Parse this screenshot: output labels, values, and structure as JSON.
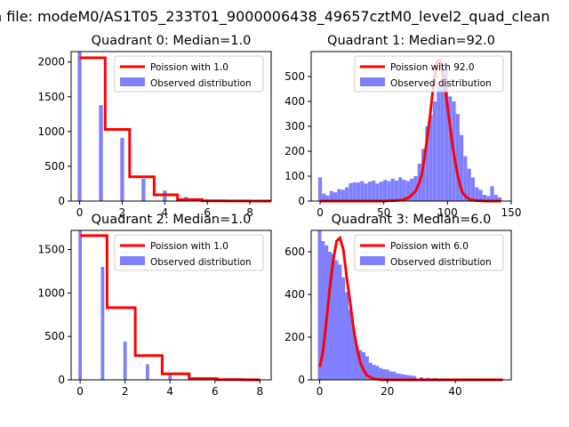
{
  "suptitle": "n file: modeM0/AS1T05_233T01_9000006438_49657cztM0_level2_quad_clean",
  "colors": {
    "model": "#ff0000",
    "observed": "#7f7fff",
    "axis": "#000000"
  },
  "chart_data": [
    {
      "type": "bar",
      "title": "Quadrant 0: Median=1.0",
      "xlabel": "",
      "ylabel": "",
      "xlim": [
        -0.4,
        9.0
      ],
      "ylim": [
        0,
        2150
      ],
      "xticks": [
        0,
        2,
        4,
        6,
        8
      ],
      "yticks": [
        0,
        500,
        1000,
        1500,
        2000
      ],
      "legend": [
        "Poission with 1.0",
        "Observed distribution"
      ],
      "legend_position": "top-right",
      "observed": {
        "name": "Observed distribution",
        "bin_width": 0.18,
        "bins": [
          [
            0,
            2150
          ],
          [
            1,
            1380
          ],
          [
            2,
            910
          ],
          [
            3,
            320
          ],
          [
            4,
            150
          ],
          [
            5,
            60
          ],
          [
            6,
            25
          ],
          [
            7,
            10
          ],
          [
            8,
            4
          ]
        ]
      },
      "model": {
        "name": "Poission with 1.0",
        "steps": [
          [
            0,
            2060
          ],
          [
            1.2,
            2060
          ],
          [
            1.2,
            1030
          ],
          [
            2.35,
            1030
          ],
          [
            2.35,
            350
          ],
          [
            3.5,
            350
          ],
          [
            3.5,
            90
          ],
          [
            4.6,
            90
          ],
          [
            4.6,
            20
          ],
          [
            5.75,
            20
          ],
          [
            5.75,
            4
          ],
          [
            6.9,
            4
          ],
          [
            6.9,
            1
          ],
          [
            8.0,
            1
          ],
          [
            8.0,
            0
          ],
          [
            9.0,
            0
          ]
        ]
      }
    },
    {
      "type": "bar",
      "title": "Quadrant 1: Median=92.0",
      "xlabel": "",
      "ylabel": "",
      "xlim": [
        -7,
        150
      ],
      "ylim": [
        0,
        600
      ],
      "xticks": [
        0,
        50,
        100,
        150
      ],
      "yticks": [
        0,
        100,
        200,
        300,
        400,
        500
      ],
      "legend": [
        "Poission with 92.0",
        "Observed distribution"
      ],
      "legend_position": "top-right",
      "observed": {
        "name": "Observed distribution",
        "bin_width": 2.9,
        "bins": [
          [
            0,
            95
          ],
          [
            3,
            30
          ],
          [
            6,
            22
          ],
          [
            9,
            40
          ],
          [
            12,
            35
          ],
          [
            15,
            48
          ],
          [
            18,
            45
          ],
          [
            21,
            55
          ],
          [
            24,
            72
          ],
          [
            27,
            75
          ],
          [
            30,
            75
          ],
          [
            33,
            80
          ],
          [
            36,
            70
          ],
          [
            39,
            78
          ],
          [
            42,
            82
          ],
          [
            45,
            70
          ],
          [
            48,
            78
          ],
          [
            51,
            85
          ],
          [
            54,
            80
          ],
          [
            57,
            90
          ],
          [
            60,
            82
          ],
          [
            63,
            95
          ],
          [
            66,
            85
          ],
          [
            69,
            80
          ],
          [
            72,
            90
          ],
          [
            75,
            100
          ],
          [
            78,
            150
          ],
          [
            81,
            210
          ],
          [
            84,
            300
          ],
          [
            87,
            345
          ],
          [
            90,
            400
          ],
          [
            93,
            460
          ],
          [
            96,
            490
          ],
          [
            99,
            540
          ],
          [
            102,
            420
          ],
          [
            105,
            400
          ],
          [
            108,
            350
          ],
          [
            111,
            265
          ],
          [
            114,
            180
          ],
          [
            117,
            130
          ],
          [
            120,
            95
          ],
          [
            123,
            55
          ],
          [
            126,
            45
          ],
          [
            129,
            25
          ],
          [
            132,
            20
          ],
          [
            135,
            60
          ],
          [
            138,
            25
          ],
          [
            141,
            15
          ]
        ]
      },
      "model": {
        "name": "Poission with 92.0",
        "points": [
          [
            0,
            0
          ],
          [
            50,
            0
          ],
          [
            60,
            2
          ],
          [
            65,
            5
          ],
          [
            70,
            15
          ],
          [
            75,
            40
          ],
          [
            78,
            75
          ],
          [
            80,
            110
          ],
          [
            82,
            175
          ],
          [
            84,
            250
          ],
          [
            86,
            330
          ],
          [
            88,
            420
          ],
          [
            90,
            500
          ],
          [
            92,
            560
          ],
          [
            94,
            565
          ],
          [
            96,
            520
          ],
          [
            98,
            460
          ],
          [
            100,
            380
          ],
          [
            102,
            300
          ],
          [
            104,
            220
          ],
          [
            106,
            160
          ],
          [
            108,
            105
          ],
          [
            110,
            60
          ],
          [
            112,
            32
          ],
          [
            115,
            15
          ],
          [
            118,
            6
          ],
          [
            122,
            2
          ],
          [
            130,
            0
          ],
          [
            142,
            0
          ]
        ]
      }
    },
    {
      "type": "bar",
      "title": "Quadrant 2: Median=1.0",
      "xlabel": "",
      "ylabel": "",
      "xlim": [
        -0.4,
        8.5
      ],
      "ylim": [
        0,
        1720
      ],
      "xticks": [
        0,
        2,
        4,
        6,
        8
      ],
      "yticks": [
        0,
        500,
        1000,
        1500
      ],
      "legend": [
        "Poission with 1.0",
        "Observed distribution"
      ],
      "legend_position": "top-right",
      "observed": {
        "name": "Observed distribution",
        "bin_width": 0.15,
        "bins": [
          [
            0,
            1720
          ],
          [
            1,
            1300
          ],
          [
            2,
            440
          ],
          [
            3,
            180
          ],
          [
            4,
            60
          ],
          [
            5,
            20
          ],
          [
            6,
            8
          ],
          [
            7,
            3
          ],
          [
            8,
            1
          ]
        ]
      },
      "model": {
        "name": "Poission with 1.0",
        "steps": [
          [
            0,
            1660
          ],
          [
            1.2,
            1660
          ],
          [
            1.2,
            830
          ],
          [
            2.45,
            830
          ],
          [
            2.45,
            280
          ],
          [
            3.65,
            280
          ],
          [
            3.65,
            70
          ],
          [
            4.85,
            70
          ],
          [
            4.85,
            14
          ],
          [
            6.1,
            14
          ],
          [
            6.1,
            2
          ],
          [
            7.3,
            2
          ],
          [
            7.3,
            0
          ],
          [
            8.0,
            0
          ]
        ]
      }
    },
    {
      "type": "bar",
      "title": "Quadrant 3: Median=6.0",
      "xlabel": "",
      "ylabel": "",
      "xlim": [
        -2.5,
        56.5
      ],
      "ylim": [
        0,
        700
      ],
      "xticks": [
        0,
        20,
        40
      ],
      "yticks": [
        0,
        200,
        400,
        600
      ],
      "legend": [
        "Poission with 6.0",
        "Observed distribution"
      ],
      "legend_position": "top-right",
      "observed": {
        "name": "Observed distribution",
        "bin_width": 1.05,
        "bins": [
          [
            0,
            700
          ],
          [
            1,
            650
          ],
          [
            2,
            630
          ],
          [
            3,
            600
          ],
          [
            4,
            590
          ],
          [
            5,
            560
          ],
          [
            6,
            540
          ],
          [
            7,
            480
          ],
          [
            8,
            410
          ],
          [
            9,
            330
          ],
          [
            10,
            240
          ],
          [
            11,
            160
          ],
          [
            12,
            140
          ],
          [
            13,
            130
          ],
          [
            14,
            110
          ],
          [
            15,
            80
          ],
          [
            16,
            70
          ],
          [
            17,
            65
          ],
          [
            18,
            55
          ],
          [
            19,
            50
          ],
          [
            20,
            48
          ],
          [
            21,
            40
          ],
          [
            22,
            38
          ],
          [
            23,
            30
          ],
          [
            24,
            28
          ],
          [
            25,
            25
          ],
          [
            26,
            22
          ],
          [
            27,
            20
          ],
          [
            28,
            18
          ],
          [
            30,
            12
          ],
          [
            32,
            10
          ],
          [
            34,
            8
          ],
          [
            36,
            6
          ],
          [
            40,
            3
          ],
          [
            45,
            2
          ],
          [
            50,
            1
          ]
        ]
      },
      "model": {
        "name": "Poission with 6.0",
        "points": [
          [
            0,
            60
          ],
          [
            1,
            130
          ],
          [
            2,
            280
          ],
          [
            3,
            430
          ],
          [
            4,
            560
          ],
          [
            5,
            650
          ],
          [
            6,
            665
          ],
          [
            7,
            610
          ],
          [
            8,
            480
          ],
          [
            9,
            360
          ],
          [
            10,
            240
          ],
          [
            11,
            150
          ],
          [
            12,
            80
          ],
          [
            13,
            45
          ],
          [
            14,
            20
          ],
          [
            16,
            5
          ],
          [
            18,
            1
          ],
          [
            20,
            0
          ],
          [
            54,
            0
          ]
        ]
      }
    }
  ]
}
